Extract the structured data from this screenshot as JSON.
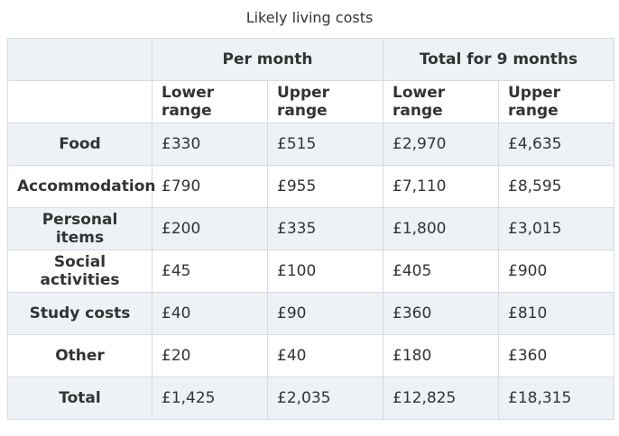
{
  "caption": "Likely living costs",
  "table": {
    "groups": [
      "Per month",
      "Total for 9 months"
    ],
    "subheaders": [
      "Lower range",
      "Upper range",
      "Lower range",
      "Upper range"
    ],
    "rows": [
      {
        "label": "Food",
        "values": [
          "£330",
          "£515",
          "£2,970",
          "£4,635"
        ]
      },
      {
        "label": "Accommodation",
        "values": [
          "£790",
          "£955",
          "£7,110",
          "£8,595"
        ]
      },
      {
        "label": "Personal items",
        "values": [
          "£200",
          "£335",
          "£1,800",
          "£3,015"
        ]
      },
      {
        "label": "Social activities",
        "values": [
          "£45",
          "£100",
          "£405",
          "£900"
        ]
      },
      {
        "label": "Study costs",
        "values": [
          "£40",
          "£90",
          "£360",
          "£810"
        ]
      },
      {
        "label": "Other",
        "values": [
          "£20",
          "£40",
          "£180",
          "£360"
        ]
      },
      {
        "label": "Total",
        "values": [
          "£1,425",
          "£2,035",
          "£12,825",
          "£18,315"
        ]
      }
    ]
  },
  "colors": {
    "header_bg": "#eef2f6",
    "border": "#d6dbe0",
    "text": "#333333"
  }
}
